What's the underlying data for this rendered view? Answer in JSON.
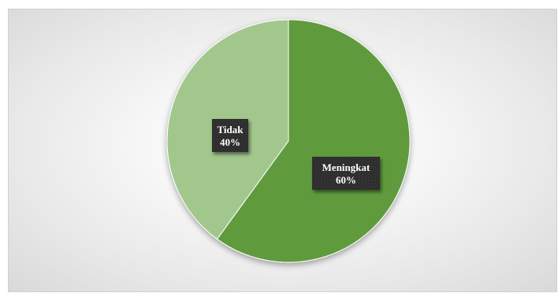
{
  "colors": {
    "meningkat": "#5f9b3c",
    "tidak": "#a2c78d",
    "label_bg": "#2b2b2b",
    "label_text": "#ffffff"
  },
  "chart_data": {
    "type": "pie",
    "title": "",
    "categories": [
      "Meningkat",
      "Tidak"
    ],
    "values": [
      60,
      40
    ],
    "unit": "%",
    "start_angle_deg": 0,
    "direction": "clockwise",
    "data_labels": [
      {
        "category": "Meningkat",
        "value_text": "60%"
      },
      {
        "category": "Tidak",
        "value_text": "40%"
      }
    ],
    "legend": "none"
  }
}
